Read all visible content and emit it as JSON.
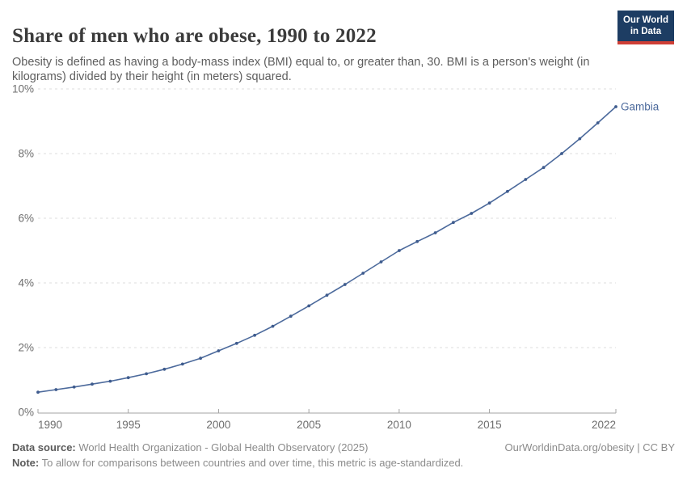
{
  "header": {
    "title": "Share of men who are obese, 1990 to 2022",
    "subtitle": "Obesity is defined as having a body-mass index (BMI) equal to, or greater than, 30. BMI is a person's weight (in kilograms) divided by their height (in meters) squared.",
    "logo": {
      "line1": "Our World",
      "line2": "in Data"
    }
  },
  "chart_data": {
    "type": "line",
    "title": "Share of men who are obese, 1990 to 2022",
    "xlabel": "",
    "ylabel": "",
    "xlim": [
      1990,
      2022
    ],
    "ylim": [
      0,
      10
    ],
    "grid": "horizontal-dashed",
    "legend_position": "end-of-line-label",
    "x": [
      1990,
      1991,
      1992,
      1993,
      1994,
      1995,
      1996,
      1997,
      1998,
      1999,
      2000,
      2001,
      2002,
      2003,
      2004,
      2005,
      2006,
      2007,
      2008,
      2009,
      2010,
      2011,
      2012,
      2013,
      2014,
      2015,
      2016,
      2017,
      2018,
      2019,
      2020,
      2021,
      2022
    ],
    "series": [
      {
        "name": "Gambia",
        "values": [
          0.62,
          0.7,
          0.78,
          0.87,
          0.96,
          1.07,
          1.19,
          1.33,
          1.49,
          1.67,
          1.9,
          2.13,
          2.38,
          2.66,
          2.97,
          3.29,
          3.62,
          3.95,
          4.3,
          4.65,
          5.0,
          5.28,
          5.55,
          5.87,
          6.15,
          6.47,
          6.83,
          7.2,
          7.57,
          8.0,
          8.46,
          8.95,
          9.45
        ]
      }
    ],
    "x_tick_labels": [
      "1990",
      "1995",
      "2000",
      "2005",
      "2010",
      "2015",
      "2022"
    ],
    "y_tick_labels": [
      "0%",
      "2%",
      "4%",
      "6%",
      "8%",
      "10%"
    ],
    "end_label": "Gambia"
  },
  "footer": {
    "source_label": "Data source:",
    "source_text": " World Health Organization - Global Health Observatory (2025)",
    "link": "OurWorldinData.org/obesity | CC BY",
    "note_label": "Note:",
    "note_text": " To allow for comparisons between countries and over time, this metric is age-standardized."
  },
  "colors": {
    "line": "#4c6a9c",
    "point": "#3f5c8e",
    "grid": "#dcdcdc",
    "axis": "#a3a3a3",
    "tick_text": "#6e6e6e",
    "end_label_text": "#4c6a9c",
    "logo_bg": "#1d3d63",
    "logo_stripe": "#cf3f36"
  }
}
